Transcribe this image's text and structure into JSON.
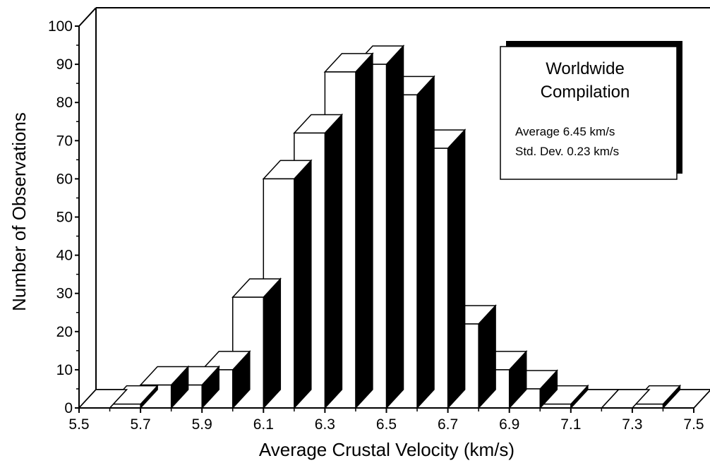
{
  "chart_data": {
    "type": "bar",
    "xlabel": "Average Crustal Velocity (km/s)",
    "ylabel": "Number of Observations",
    "xlim": [
      5.5,
      7.5
    ],
    "ylim": [
      0,
      100
    ],
    "bin_width": 0.1,
    "x_ticks": [
      "5.5",
      "5.7",
      "5.9",
      "6.1",
      "6.3",
      "6.5",
      "6.7",
      "6.9",
      "7.1",
      "7.3",
      "7.5"
    ],
    "y_ticks": [
      "0",
      "10",
      "20",
      "30",
      "40",
      "50",
      "60",
      "70",
      "80",
      "90",
      "100"
    ],
    "bins": [
      5.5,
      5.6,
      5.7,
      5.8,
      5.9,
      6.0,
      6.1,
      6.2,
      6.3,
      6.4,
      6.5,
      6.6,
      6.7,
      6.8,
      6.9,
      7.0,
      7.1,
      7.2,
      7.3,
      7.4
    ],
    "values": [
      0,
      1,
      6,
      6,
      10,
      29,
      60,
      72,
      88,
      90,
      82,
      68,
      22,
      10,
      5,
      1,
      0,
      0,
      1,
      0
    ],
    "legend": {
      "title_line1": "Worldwide",
      "title_line2": "Compilation",
      "average": "Average  6.45 km/s",
      "std_dev": "Std. Dev.  0.23 km/s"
    },
    "colors": {
      "bar_face": "#ffffff",
      "bar_shadow": "#000000",
      "outline": "#000000"
    }
  }
}
